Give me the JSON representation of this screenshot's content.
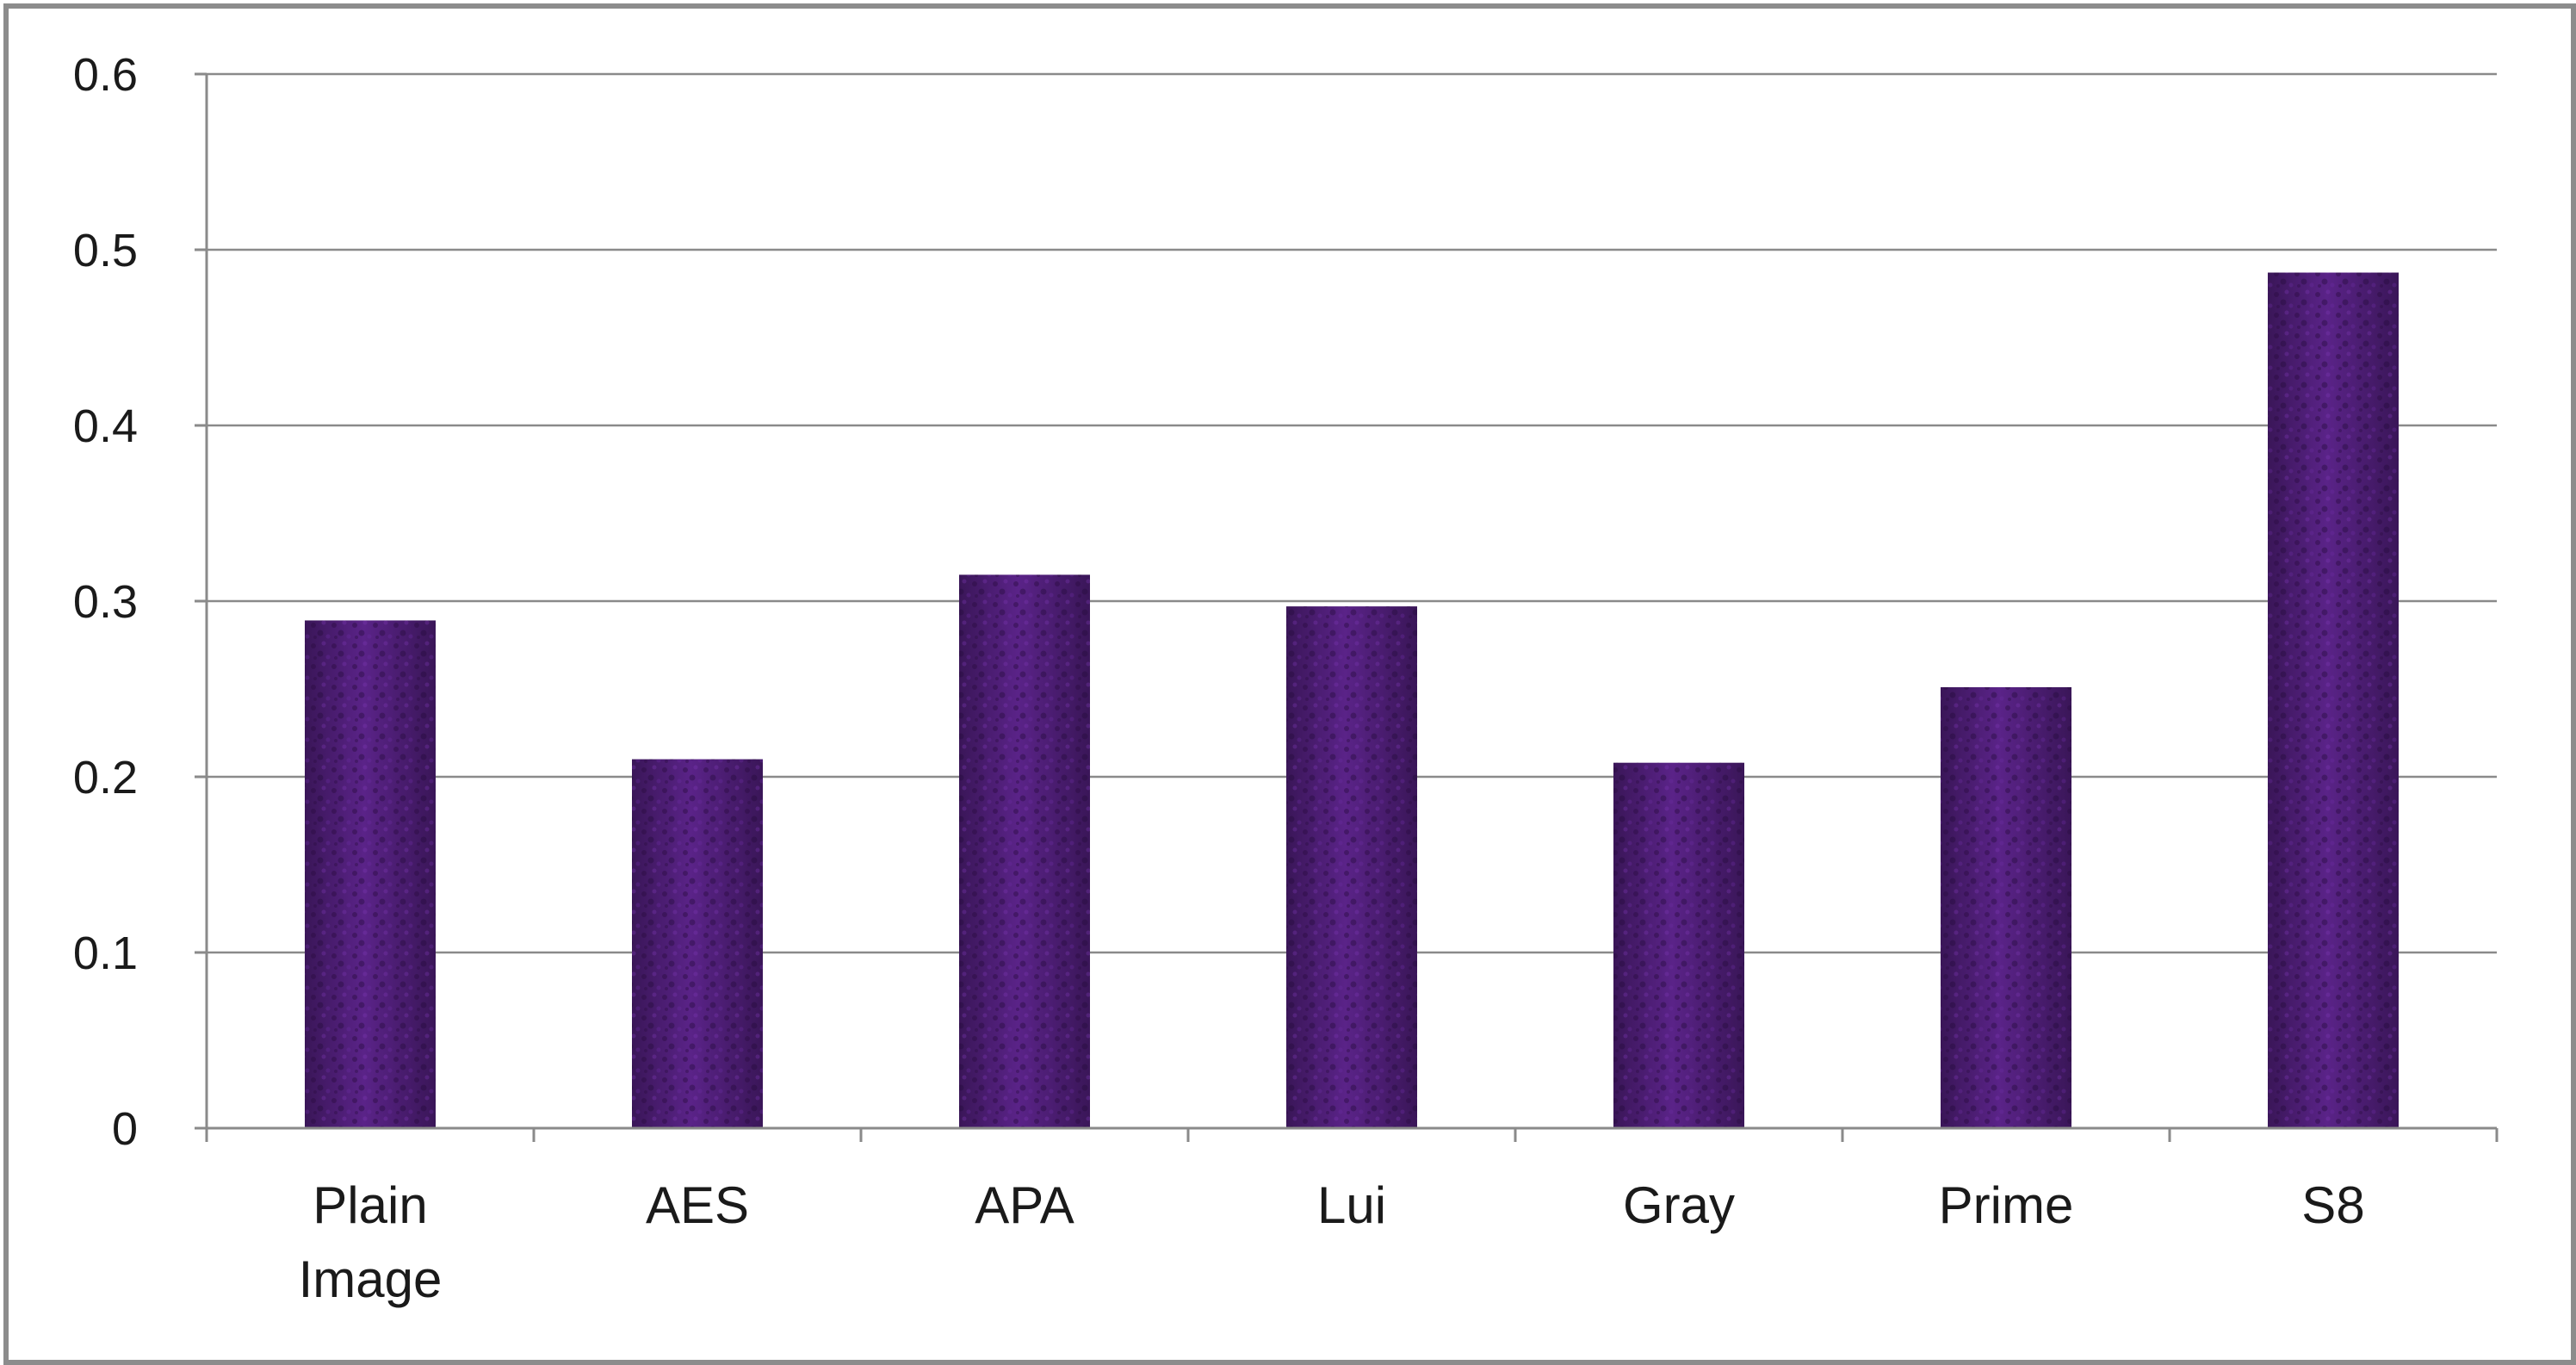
{
  "chart_data": {
    "type": "bar",
    "title": "",
    "xlabel": "",
    "ylabel": "",
    "categories": [
      "Plain\nImage",
      "AES",
      "APA",
      "Lui",
      "Gray",
      "Prime",
      "S8"
    ],
    "values": [
      0.289,
      0.21,
      0.315,
      0.297,
      0.208,
      0.251,
      0.487
    ],
    "ylim": [
      0,
      0.6
    ],
    "yticks": [
      "0",
      "0.1",
      "0.2",
      "0.3",
      "0.4",
      "0.5",
      "0.6"
    ],
    "grid": true,
    "legend": "none",
    "colors": {
      "bar": "#4a1c6e",
      "bar_highlight": "#5e2490",
      "bar_shadow": "#2c0f45"
    }
  }
}
